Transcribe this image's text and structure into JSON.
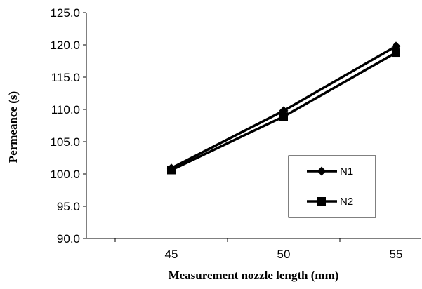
{
  "chart_data": {
    "type": "line",
    "title": "",
    "xlabel": "Measurement nozzle length (mm)",
    "ylabel": "Permeance (s)",
    "x": [
      45,
      50,
      55
    ],
    "x_tick_labels": [
      "45",
      "50",
      "55"
    ],
    "y_tick_labels": [
      "90.0",
      "95.0",
      "100.0",
      "105.0",
      "110.0",
      "115.0",
      "120.0",
      "125.0"
    ],
    "ylim": [
      90,
      125
    ],
    "grid": false,
    "legend_position": "right",
    "series": [
      {
        "name": "N1",
        "marker": "diamond",
        "color": "#000000",
        "values": [
          100.9,
          109.8,
          119.8
        ]
      },
      {
        "name": "N2",
        "marker": "square",
        "color": "#000000",
        "values": [
          100.6,
          108.9,
          118.8
        ]
      }
    ]
  }
}
